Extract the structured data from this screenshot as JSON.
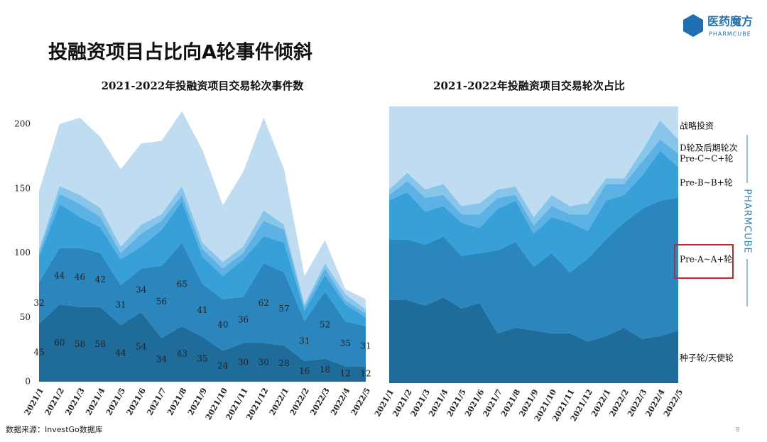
{
  "slide": {
    "title": "投融资项目占比向A轮事件倾斜",
    "logo": "医药魔方",
    "logo_sub": "PHARMCUBE",
    "side_brand": "PHARMCUBE",
    "source": "数据来源：InvestGo数据库",
    "page_number": "8"
  },
  "chart_data": [
    {
      "type": "area",
      "stacked": true,
      "title": "2021-2022年投融资项目交易轮次事件数",
      "categories": [
        "2021/1",
        "2021/2",
        "2021/3",
        "2021/4",
        "2021/5",
        "2021/6",
        "2021/7",
        "2021/8",
        "2021/9",
        "2021/10",
        "2021/11",
        "2021/12",
        "2022/1",
        "2022/2",
        "2022/3",
        "2022/4",
        "2022/5"
      ],
      "ylim": [
        0,
        220
      ],
      "yticks": [
        0,
        50,
        100,
        150,
        200
      ],
      "series": [
        {
          "name": "种子轮/天使轮",
          "color": "#1f6c9b",
          "data_labels": true,
          "values": [
            45,
            60,
            58,
            58,
            44,
            54,
            34,
            43,
            35,
            24,
            30,
            30,
            28,
            16,
            18,
            12,
            12
          ]
        },
        {
          "name": "Pre-A~A+轮",
          "color": "#2a86bd",
          "data_labels": true,
          "values": [
            32,
            44,
            46,
            42,
            31,
            34,
            56,
            65,
            41,
            40,
            36,
            62,
            57,
            31,
            52,
            35,
            31
          ]
        },
        {
          "name": "Pre-B~B+轮",
          "color": "#37a0d8",
          "values": [
            20,
            34,
            24,
            20,
            20,
            17,
            28,
            32,
            21,
            18,
            29,
            21,
            23,
            8,
            13,
            13,
            7
          ]
        },
        {
          "name": "Pre-C~C+轮",
          "color": "#5cb2e4",
          "values": [
            3,
            8,
            10,
            8,
            5,
            10,
            7,
            5,
            6,
            6,
            5,
            12,
            10,
            3,
            5,
            3,
            3
          ]
        },
        {
          "name": "D轮及后期轮次",
          "color": "#87c5eb",
          "values": [
            3,
            6,
            7,
            7,
            5,
            7,
            5,
            7,
            5,
            5,
            5,
            8,
            4,
            2,
            4,
            5,
            3
          ]
        },
        {
          "name": "战略投资",
          "color": "#bfdcf1",
          "values": [
            45,
            48,
            60,
            55,
            60,
            63,
            57,
            58,
            72,
            44,
            58,
            72,
            43,
            22,
            18,
            4,
            8
          ]
        }
      ]
    },
    {
      "type": "area",
      "stacked": true,
      "title": "2021-2022年投融资项目交易轮次占比",
      "categories": [
        "2021/1",
        "2021/2",
        "2021/3",
        "2021/4",
        "2021/5",
        "2021/6",
        "2021/7",
        "2021/8",
        "2021/9",
        "2021/10",
        "2021/11",
        "2021/12",
        "2022/1",
        "2022/2",
        "2022/3",
        "2022/4",
        "2022/5"
      ],
      "ylim": [
        0,
        100
      ],
      "legend": "right",
      "series": [
        {
          "name": "种子轮/天使轮",
          "color": "#1f6c9b",
          "values": [
            30,
            30,
            28,
            31,
            27,
            29,
            18,
            20,
            19,
            18,
            18,
            15,
            17,
            20,
            16,
            17,
            19
          ]
        },
        {
          "name": "Pre-A~A+轮",
          "color": "#2a86bd",
          "values": [
            22,
            22,
            22,
            22,
            19,
            18,
            30,
            31,
            23,
            29,
            22,
            30,
            35,
            38,
            47,
            49,
            48
          ]
        },
        {
          "name": "Pre-B~B+轮",
          "color": "#37a0d8",
          "values": [
            14,
            17,
            12,
            11,
            12,
            9,
            15,
            15,
            12,
            13,
            18,
            10,
            14,
            10,
            12,
            18,
            11
          ]
        },
        {
          "name": "Pre-C~C+轮",
          "color": "#5cb2e4",
          "values": [
            2,
            4,
            5,
            4,
            3,
            5,
            4,
            2,
            3,
            4,
            3,
            6,
            6,
            4,
            5,
            4,
            5
          ]
        },
        {
          "name": "D轮及后期轮次",
          "color": "#87c5eb",
          "values": [
            2,
            3,
            3,
            4,
            3,
            4,
            3,
            3,
            3,
            4,
            3,
            4,
            2,
            2,
            4,
            7,
            5
          ]
        },
        {
          "name": "战略投资",
          "color": "#bfdcf1",
          "values": [
            30,
            24,
            30,
            28,
            36,
            35,
            30,
            29,
            40,
            32,
            36,
            35,
            26,
            26,
            16,
            5,
            12
          ]
        }
      ]
    }
  ]
}
